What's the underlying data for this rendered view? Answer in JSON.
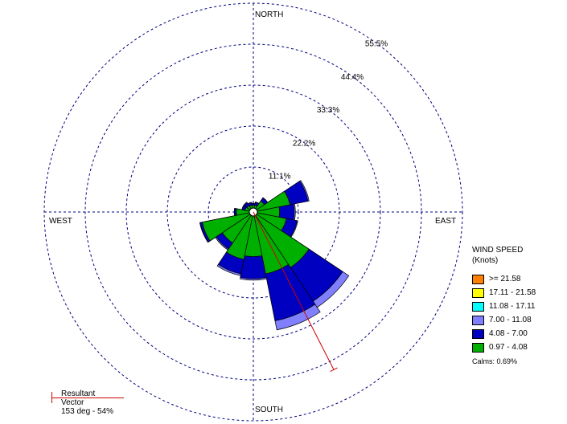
{
  "chart_data": {
    "type": "windrose",
    "direction_labels": {
      "north": "NORTH",
      "east": "EAST",
      "south": "SOUTH",
      "west": "WEST"
    },
    "rings": [
      "11.1%",
      "22.2%",
      "33.3%",
      "44.4%",
      "55.5%"
    ],
    "ring_values": [
      11.1,
      22.2,
      33.3,
      44.4,
      55.5
    ],
    "legend_title": "WIND SPEED\n(Knots)",
    "speed_bins": [
      {
        "label": ">= 21.58",
        "color": "#ff8000"
      },
      {
        "label": "17.11 - 21.58",
        "color": "#ffff00"
      },
      {
        "label": "11.08 - 17.11",
        "color": "#00ffff"
      },
      {
        "label": "7.00 - 11.08",
        "color": "#8080ff"
      },
      {
        "label": "4.08 - 7.00",
        "color": "#0000c0"
      },
      {
        "label": "0.97 - 4.08",
        "color": "#00b000"
      }
    ],
    "calms": "Calms: 0.69%",
    "sector_width_deg": 22.5,
    "sectors": [
      {
        "dir": 0,
        "cumulative": [
          0.7,
          1.2,
          1.3
        ]
      },
      {
        "dir": 22.5,
        "cumulative": [
          0.8,
          1.6,
          1.7
        ]
      },
      {
        "dir": 45,
        "cumulative": [
          2.5,
          3.5,
          3.6
        ]
      },
      {
        "dir": 67.5,
        "cumulative": [
          9.0,
          14.0,
          14.3
        ]
      },
      {
        "dir": 90,
        "cumulative": [
          6.0,
          10.0,
          10.3
        ]
      },
      {
        "dir": 112.5,
        "cumulative": [
          8.0,
          11.0,
          11.2
        ]
      },
      {
        "dir": 135,
        "cumulative": [
          17.0,
          28.0,
          30.0
        ]
      },
      {
        "dir": 157.5,
        "cumulative": [
          16.0,
          29.0,
          31.5
        ]
      },
      {
        "dir": 180,
        "cumulative": [
          11.0,
          17.0,
          17.4
        ]
      },
      {
        "dir": 202.5,
        "cumulative": [
          12.0,
          16.0,
          16.5
        ]
      },
      {
        "dir": 225,
        "cumulative": [
          9.0,
          11.0,
          11.3
        ]
      },
      {
        "dir": 247.5,
        "cumulative": [
          13.0,
          13.6,
          13.7
        ]
      },
      {
        "dir": 270,
        "cumulative": [
          3.5,
          4.0,
          4.1
        ]
      },
      {
        "dir": 292.5,
        "cumulative": [
          1.2,
          2.0,
          2.1
        ]
      },
      {
        "dir": 315,
        "cumulative": [
          1.0,
          2.0,
          2.1
        ]
      },
      {
        "dir": 337.5,
        "cumulative": [
          0.8,
          1.5,
          1.6
        ]
      }
    ],
    "resultant": {
      "label": "Resultant Vector",
      "value": "153 deg - 54%",
      "direction_deg": 153,
      "percent": 54
    }
  }
}
